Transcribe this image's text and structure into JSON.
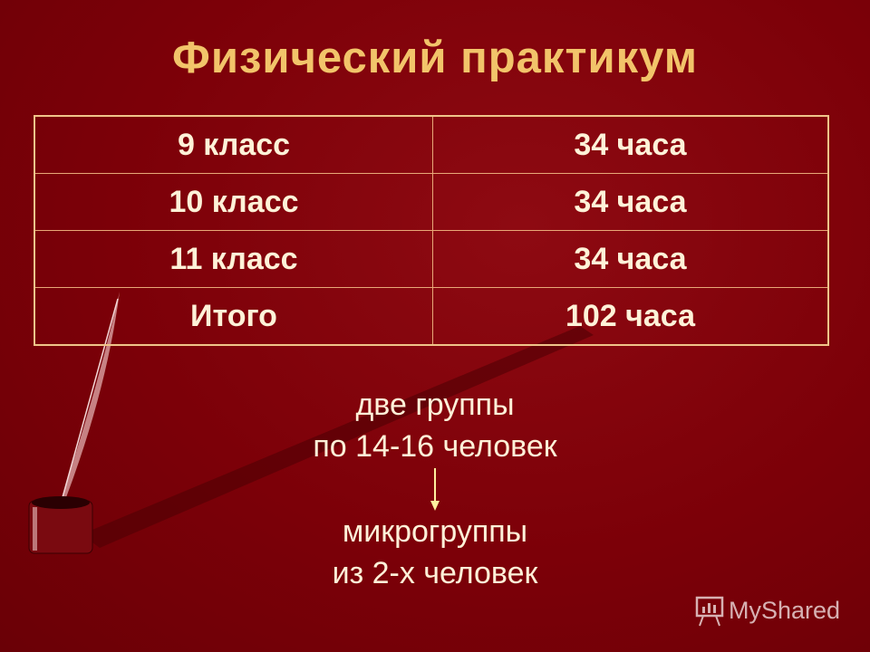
{
  "title": "Физический практикум",
  "table": {
    "rows": [
      {
        "grade": "9 класс",
        "hours": "34 часа"
      },
      {
        "grade": "10 класс",
        "hours": "34 часа"
      },
      {
        "grade": "11 класс",
        "hours": "34 часа"
      },
      {
        "grade": "Итого",
        "hours": "102 часа"
      }
    ]
  },
  "groups": {
    "line1": "две группы",
    "line2": "по 14-16 человек",
    "line3": "микрогруппы",
    "line4": "из 2-х человек"
  },
  "watermark": "MyShared",
  "colors": {
    "background": "#7c0008",
    "title": "#f2c46a",
    "text": "#fff2d8",
    "border": "#f0c48a"
  }
}
